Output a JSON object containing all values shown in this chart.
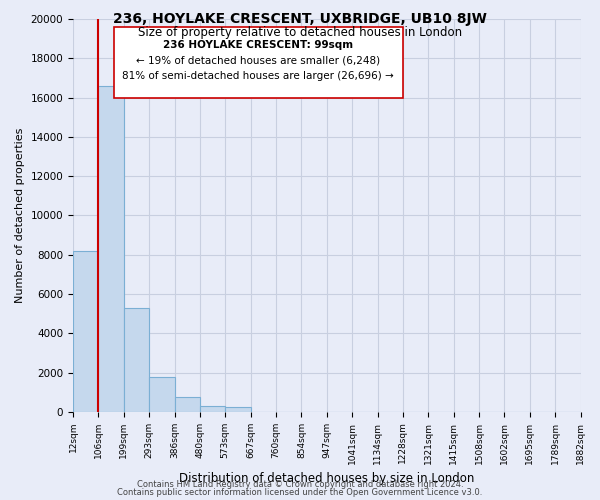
{
  "title": "236, HOYLAKE CRESCENT, UXBRIDGE, UB10 8JW",
  "subtitle": "Size of property relative to detached houses in London",
  "xlabel": "Distribution of detached houses by size in London",
  "ylabel": "Number of detached properties",
  "bar_values": [
    8200,
    16600,
    5300,
    1750,
    750,
    280,
    230,
    0,
    0,
    0,
    0,
    0,
    0,
    0,
    0,
    0,
    0,
    0,
    0,
    0
  ],
  "bin_labels": [
    "12sqm",
    "106sqm",
    "199sqm",
    "293sqm",
    "386sqm",
    "480sqm",
    "573sqm",
    "667sqm",
    "760sqm",
    "854sqm",
    "947sqm",
    "1041sqm",
    "1134sqm",
    "1228sqm",
    "1321sqm",
    "1415sqm",
    "1508sqm",
    "1602sqm",
    "1695sqm",
    "1789sqm",
    "1882sqm"
  ],
  "bar_color": "#c5d8ed",
  "bar_edge_color": "#7bafd4",
  "property_line_color": "#cc0000",
  "property_label": "236 HOYLAKE CRESCENT: 99sqm",
  "annotation_smaller": "← 19% of detached houses are smaller (6,248)",
  "annotation_larger": "81% of semi-detached houses are larger (26,696) →",
  "ylim": [
    0,
    20000
  ],
  "yticks": [
    0,
    2000,
    4000,
    6000,
    8000,
    10000,
    12000,
    14000,
    16000,
    18000,
    20000
  ],
  "footer1": "Contains HM Land Registry data © Crown copyright and database right 2024.",
  "footer2": "Contains public sector information licensed under the Open Government Licence v3.0.",
  "grid_color": "#c8cfe0",
  "background_color": "#e8ecf8"
}
